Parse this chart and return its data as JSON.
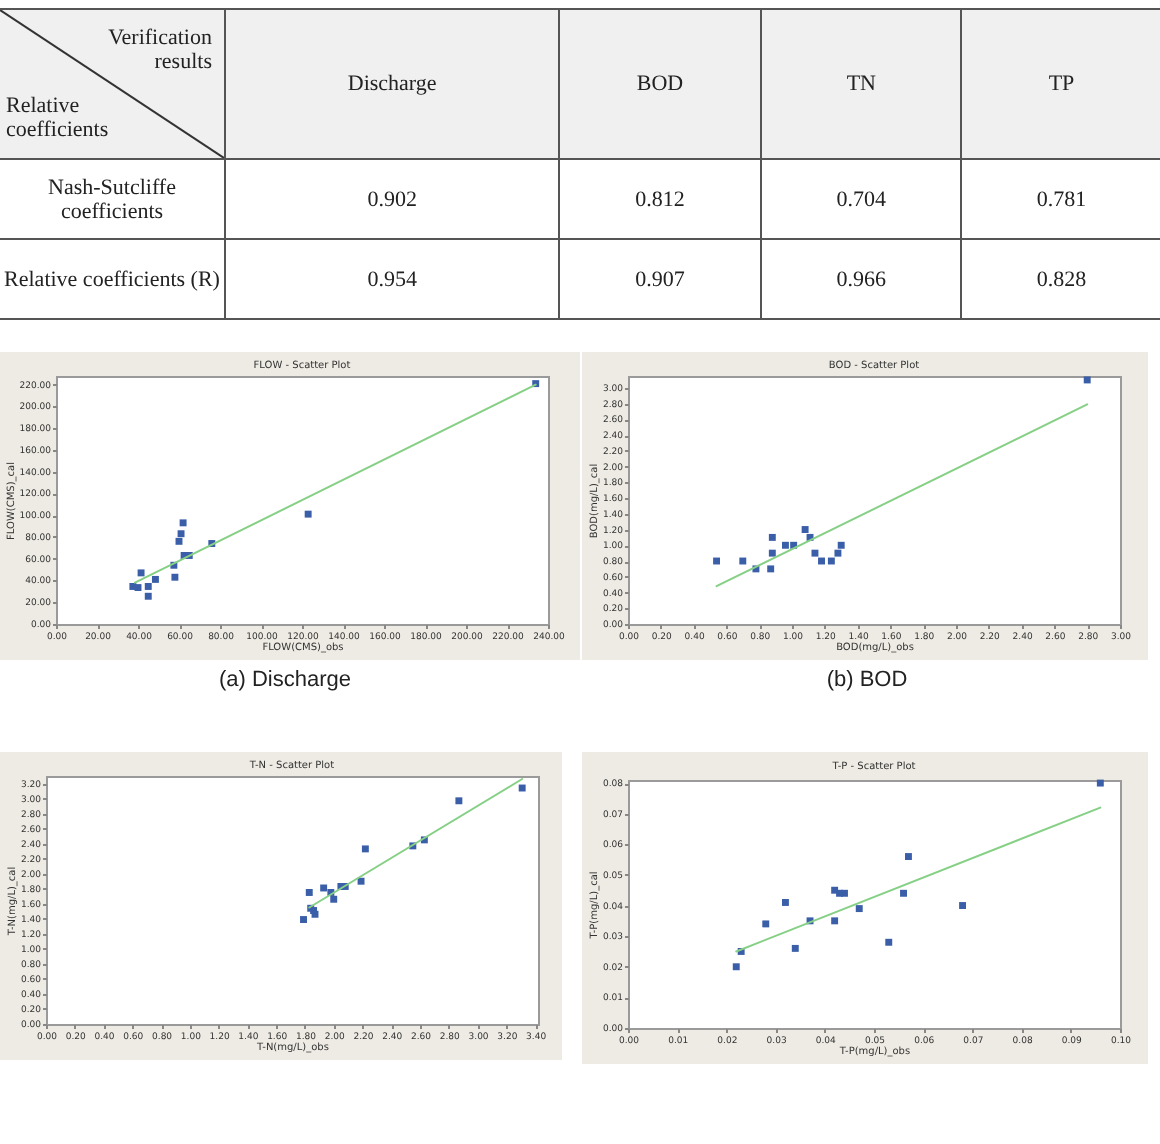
{
  "chart_data": [
    {
      "type": "other",
      "annotations": [
        "Verification results",
        "Relative coefficients",
        "Discharge",
        "BOD",
        "TN",
        "TP",
        "Nash-Sutcliffe coefficients",
        "0.902",
        "0.812",
        "0.704",
        "0.781",
        "Relative  coefficients (R)",
        "0.954",
        "0.907",
        "0.966",
        "0.828"
      ]
    },
    {
      "type": "scatter",
      "title": "FLOW - Scatter Plot",
      "xlabel": "FLOW(CMS)_obs",
      "ylabel": "FLOW(CMS)_cal",
      "annotations": [
        "(a)  Discharge"
      ],
      "xlim": [
        0,
        240
      ],
      "ylim": [
        0,
        228
      ],
      "xticks": [
        {
          "value": 0,
          "label": "0.00"
        },
        {
          "value": 20,
          "label": "20.00"
        },
        {
          "value": 40,
          "label": "40.00"
        },
        {
          "value": 60,
          "label": "60.00"
        },
        {
          "value": 80,
          "label": "80.00"
        },
        {
          "value": 100,
          "label": "100.00"
        },
        {
          "value": 120,
          "label": "120.00"
        },
        {
          "value": 140,
          "label": "140.00"
        },
        {
          "value": 160,
          "label": "160.00"
        },
        {
          "value": 180,
          "label": "180.00"
        },
        {
          "value": 200,
          "label": "200.00"
        },
        {
          "value": 220,
          "label": "220.00"
        },
        {
          "value": 240,
          "label": "240.00"
        }
      ],
      "yticks": [
        {
          "value": 0,
          "label": "0.00"
        },
        {
          "value": 20,
          "label": "20.00"
        },
        {
          "value": 40,
          "label": "40.00"
        },
        {
          "value": 60,
          "label": "60.00"
        },
        {
          "value": 80,
          "label": "80.00"
        },
        {
          "value": 100,
          "label": "100.00"
        },
        {
          "value": 120,
          "label": "120.00"
        },
        {
          "value": 140,
          "label": "140.00"
        },
        {
          "value": 160,
          "label": "160.00"
        },
        {
          "value": 180,
          "label": "180.00"
        },
        {
          "value": 200,
          "label": "200.00"
        },
        {
          "value": 220,
          "label": "220.00"
        }
      ],
      "series": [
        {
          "type": "scatter",
          "marker": "square",
          "color": "#3a5fa8",
          "x": [
            234,
            123,
            76,
            62,
            61,
            60,
            62.5,
            65,
            57.5,
            58,
            48.5,
            41.5,
            37.5,
            40,
            45,
            45
          ],
          "values": [
            221,
            101,
            74,
            93,
            83,
            76,
            63,
            63,
            54,
            43,
            41,
            47,
            34.5,
            33.5,
            34.5,
            25.5
          ]
        },
        {
          "type": "line",
          "color": "#86d086",
          "x": [
            38.5,
            234
          ],
          "values": [
            38,
            220
          ]
        }
      ]
    },
    {
      "type": "scatter",
      "title": "BOD - Scatter Plot",
      "xlabel": "BOD(mg/L)_obs",
      "ylabel": "BOD(mg/L)_cal",
      "annotations": [
        "(b)  BOD"
      ],
      "xlim": [
        0,
        3.0
      ],
      "ylim": [
        0,
        3.15
      ],
      "xticks": [
        {
          "value": 0,
          "label": "0.00"
        },
        {
          "value": 0.2,
          "label": "0.20"
        },
        {
          "value": 0.4,
          "label": "0.40"
        },
        {
          "value": 0.6,
          "label": "0.60"
        },
        {
          "value": 0.8,
          "label": "0.80"
        },
        {
          "value": 1,
          "label": "1.00"
        },
        {
          "value": 1.2,
          "label": "1.20"
        },
        {
          "value": 1.4,
          "label": "1.40"
        },
        {
          "value": 1.6,
          "label": "1.60"
        },
        {
          "value": 1.8,
          "label": "1.80"
        },
        {
          "value": 2,
          "label": "2.00"
        },
        {
          "value": 2.2,
          "label": "2.20"
        },
        {
          "value": 2.4,
          "label": "2.40"
        },
        {
          "value": 2.6,
          "label": "2.60"
        },
        {
          "value": 2.8,
          "label": "2.80"
        },
        {
          "value": 3,
          "label": "3.00"
        }
      ],
      "yticks": [
        {
          "value": 0,
          "label": "0.00"
        },
        {
          "value": 0.2,
          "label": "0.20"
        },
        {
          "value": 0.4,
          "label": "0.40"
        },
        {
          "value": 0.6,
          "label": "0.60"
        },
        {
          "value": 0.8,
          "label": "0.80"
        },
        {
          "value": 1,
          "label": "1.00"
        },
        {
          "value": 1.2,
          "label": "1.20"
        },
        {
          "value": 1.4,
          "label": "1.40"
        },
        {
          "value": 1.6,
          "label": "1.60"
        },
        {
          "value": 1.8,
          "label": "1.80"
        },
        {
          "value": 2,
          "label": "2.00"
        },
        {
          "value": 2.2,
          "label": "2.20"
        },
        {
          "value": 2.4,
          "label": "2.40"
        },
        {
          "value": 2.6,
          "label": "2.60"
        },
        {
          "value": 2.8,
          "label": "2.80"
        },
        {
          "value": 3,
          "label": "3.00"
        }
      ],
      "series": [
        {
          "type": "scatter",
          "marker": "square",
          "color": "#3a5fa8",
          "x": [
            2.8,
            0.54,
            0.7,
            0.78,
            0.87,
            0.88,
            0.88,
            0.96,
            1.01,
            1.08,
            1.11,
            1.14,
            1.18,
            1.24,
            1.28,
            1.3
          ],
          "values": [
            3.1,
            0.8,
            0.8,
            0.7,
            0.7,
            1.1,
            0.9,
            1.0,
            1.0,
            1.2,
            1.1,
            0.9,
            0.8,
            0.8,
            0.9,
            1.0
          ]
        },
        {
          "type": "line",
          "color": "#86d086",
          "x": [
            0.54,
            2.8
          ],
          "values": [
            0.48,
            2.79
          ]
        }
      ]
    },
    {
      "type": "scatter",
      "title": "T-N - Scatter Plot",
      "xlabel": "T-N(mg/L)_obs",
      "ylabel": "T-N(mg/L)_cal",
      "xlim": [
        0,
        3.42
      ],
      "ylim": [
        0,
        3.3
      ],
      "xticks": [
        {
          "value": 0,
          "label": "0.00"
        },
        {
          "value": 0.2,
          "label": "0.20"
        },
        {
          "value": 0.4,
          "label": "0.40"
        },
        {
          "value": 0.6,
          "label": "0.60"
        },
        {
          "value": 0.8,
          "label": "0.80"
        },
        {
          "value": 1,
          "label": "1.00"
        },
        {
          "value": 1.2,
          "label": "1.20"
        },
        {
          "value": 1.4,
          "label": "1.40"
        },
        {
          "value": 1.6,
          "label": "1.60"
        },
        {
          "value": 1.8,
          "label": "1.80"
        },
        {
          "value": 2,
          "label": "2.00"
        },
        {
          "value": 2.2,
          "label": "2.20"
        },
        {
          "value": 2.4,
          "label": "2.40"
        },
        {
          "value": 2.6,
          "label": "2.60"
        },
        {
          "value": 2.8,
          "label": "2.80"
        },
        {
          "value": 3,
          "label": "3.00"
        },
        {
          "value": 3.2,
          "label": "3.20"
        },
        {
          "value": 3.4,
          "label": "3.40"
        }
      ],
      "yticks": [
        {
          "value": 0,
          "label": "0.00"
        },
        {
          "value": 0.2,
          "label": "0.20"
        },
        {
          "value": 0.4,
          "label": "0.40"
        },
        {
          "value": 0.6,
          "label": "0.60"
        },
        {
          "value": 0.8,
          "label": "0.80"
        },
        {
          "value": 1,
          "label": "1.00"
        },
        {
          "value": 1.2,
          "label": "1.20"
        },
        {
          "value": 1.4,
          "label": "1.40"
        },
        {
          "value": 1.6,
          "label": "1.60"
        },
        {
          "value": 1.8,
          "label": "1.80"
        },
        {
          "value": 2,
          "label": "2.00"
        },
        {
          "value": 2.2,
          "label": "2.20"
        },
        {
          "value": 2.4,
          "label": "2.40"
        },
        {
          "value": 2.6,
          "label": "2.60"
        },
        {
          "value": 2.8,
          "label": "2.80"
        },
        {
          "value": 3,
          "label": "3.00"
        },
        {
          "value": 3.2,
          "label": "3.20"
        }
      ],
      "series": [
        {
          "type": "scatter",
          "marker": "square",
          "color": "#3a5fa8",
          "x": [
            3.31,
            2.87,
            2.63,
            2.55,
            2.22,
            2.19,
            2.08,
            2.05,
            1.93,
            1.98,
            2.0,
            1.83,
            1.84,
            1.86,
            1.87,
            1.79
          ],
          "values": [
            3.14,
            2.97,
            2.45,
            2.37,
            2.33,
            1.9,
            1.83,
            1.83,
            1.81,
            1.75,
            1.66,
            1.75,
            1.54,
            1.51,
            1.46,
            1.39
          ]
        },
        {
          "type": "line",
          "color": "#86d086",
          "x": [
            1.83,
            3.31
          ],
          "values": [
            1.55,
            3.26
          ]
        }
      ]
    },
    {
      "type": "scatter",
      "title": "T-P - Scatter Plot",
      "xlabel": "T-P(mg/L)_obs",
      "ylabel": "T-P(mg/L)_cal",
      "xlim": [
        0,
        0.1
      ],
      "ylim": [
        0,
        0.081
      ],
      "xticks": [
        {
          "value": 0,
          "label": "0.00"
        },
        {
          "value": 0.01,
          "label": "0.01"
        },
        {
          "value": 0.02,
          "label": "0.02"
        },
        {
          "value": 0.03,
          "label": "0.03"
        },
        {
          "value": 0.04,
          "label": "0.04"
        },
        {
          "value": 0.05,
          "label": "0.05"
        },
        {
          "value": 0.06,
          "label": "0.06"
        },
        {
          "value": 0.07,
          "label": "0.07"
        },
        {
          "value": 0.08,
          "label": "0.08"
        },
        {
          "value": 0.09,
          "label": "0.09"
        },
        {
          "value": 0.1,
          "label": "0.10"
        }
      ],
      "yticks": [
        {
          "value": 0,
          "label": "0.00"
        },
        {
          "value": 0.01,
          "label": "0.01"
        },
        {
          "value": 0.02,
          "label": "0.02"
        },
        {
          "value": 0.03,
          "label": "0.03"
        },
        {
          "value": 0.04,
          "label": "0.04"
        },
        {
          "value": 0.05,
          "label": "0.05"
        },
        {
          "value": 0.06,
          "label": "0.06"
        },
        {
          "value": 0.07,
          "label": "0.07"
        },
        {
          "value": 0.08,
          "label": "0.08"
        }
      ],
      "series": [
        {
          "type": "scatter",
          "marker": "square",
          "color": "#3a5fa8",
          "x": [
            0.096,
            0.022,
            0.023,
            0.028,
            0.032,
            0.034,
            0.037,
            0.042,
            0.042,
            0.043,
            0.044,
            0.047,
            0.053,
            0.056,
            0.057,
            0.068
          ],
          "values": [
            0.08,
            0.02,
            0.025,
            0.034,
            0.041,
            0.026,
            0.035,
            0.045,
            0.035,
            0.044,
            0.044,
            0.039,
            0.028,
            0.044,
            0.056,
            0.04
          ]
        },
        {
          "type": "line",
          "color": "#86d086",
          "x": [
            0.022,
            0.096
          ],
          "values": [
            0.025,
            0.072
          ]
        }
      ]
    }
  ]
}
